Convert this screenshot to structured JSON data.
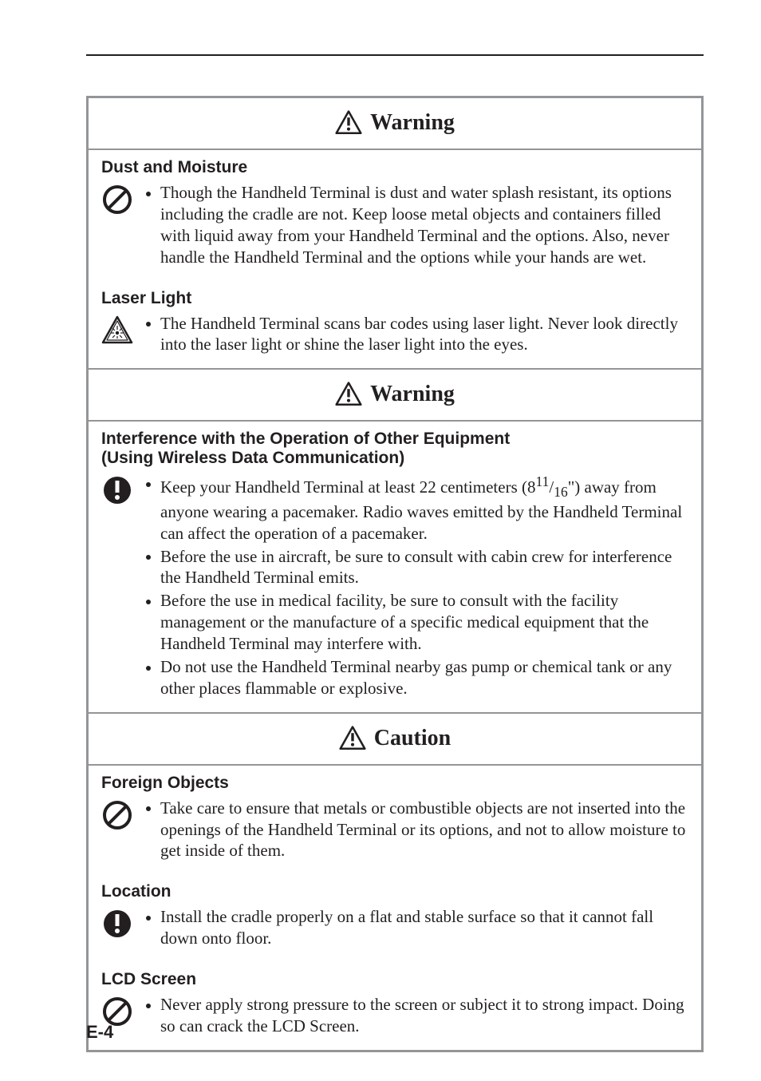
{
  "page_number": "E-4",
  "colors": {
    "text": "#231f20",
    "rule": "#231f20",
    "box_border": "#939598"
  },
  "boxes": [
    {
      "title": "Warning",
      "title_icon": "warning-triangle",
      "sections": [
        {
          "heading": "Dust and Moisture",
          "icon": "prohibit",
          "bullets": [
            "Though the Handheld Terminal is dust and water splash resistant, its options including the cradle are not. Keep loose metal objects and containers filled with liquid away from your Handheld Terminal and the options. Also, never handle the Handheld Terminal and the options while your hands are wet."
          ]
        },
        {
          "heading": "Laser Light",
          "icon": "laser-warning",
          "bullets": [
            "The Handheld Terminal scans bar codes using laser light. Never look directly into the laser light or shine the laser light into the eyes."
          ]
        }
      ]
    },
    {
      "title": "Warning",
      "title_icon": "warning-triangle",
      "sections": [
        {
          "heading": "Interference with the Operation of Other Equipment",
          "heading_line2": "(Using Wireless Data Communication)",
          "icon": "mandatory",
          "bullets": [
            "Keep your Handheld Terminal at least 22 centimeters (8<sup>11</sup>/<sub>16</sub>\") away from anyone wearing a pacemaker. Radio waves emitted by the Handheld Terminal can affect the operation of a pacemaker.",
            "Before the use in aircraft, be sure to consult with cabin crew for interference the Handheld Terminal emits.",
            "Before the use in medical facility, be sure to consult with the facility management or the manufacture of a specific medical equipment that the Handheld Terminal may interfere with.",
            "Do not use the Handheld Terminal nearby gas pump or chemical tank or any other places flammable or explosive."
          ]
        }
      ]
    },
    {
      "title": "Caution",
      "title_icon": "warning-triangle",
      "sections": [
        {
          "heading": "Foreign Objects",
          "icon": "prohibit",
          "bullets": [
            "Take care to ensure that metals or combustible objects are not inserted into the openings of the Handheld Terminal or its options, and not to allow moisture to get inside of them."
          ]
        },
        {
          "heading": "Location",
          "icon": "mandatory",
          "bullets": [
            "Install the cradle properly on a flat and stable surface so that it cannot fall down onto floor."
          ]
        },
        {
          "heading": "LCD Screen",
          "icon": "prohibit",
          "bullets": [
            "Never apply strong pressure to the screen or subject it to strong impact. Doing so can crack the LCD Screen."
          ]
        }
      ]
    }
  ]
}
